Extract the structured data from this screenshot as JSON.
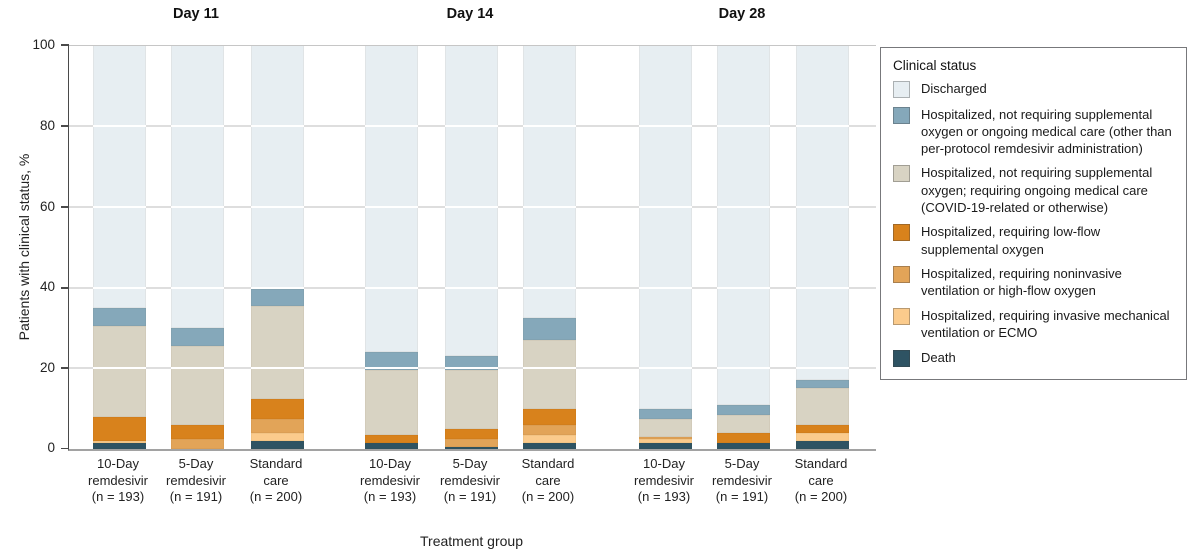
{
  "day_labels": [
    "Day 11",
    "Day 14",
    "Day 28"
  ],
  "y_axis": {
    "title": "Patients with clinical status, %",
    "ticks": [
      100,
      80,
      60,
      40,
      20,
      0
    ]
  },
  "x_axis": {
    "title": "Treatment group",
    "bar_labels": [
      [
        "10-Day",
        "remdesivir",
        "(n = 193)"
      ],
      [
        "5-Day",
        "remdesivir",
        "(n = 191)"
      ],
      [
        "Standard",
        "care",
        "(n = 200)"
      ]
    ]
  },
  "legend": {
    "title": "Clinical status",
    "items": [
      {
        "label": "Discharged",
        "color": "#e7eef2"
      },
      {
        "label": "Hospitalized, not requiring supplemental oxygen or ongoing medical care (other than per-protocol remdesivir administration)",
        "color": "#85a8ba"
      },
      {
        "label": "Hospitalized, not requiring supplemental oxygen; requiring ongoing medical care (COVID-19-related or otherwise)",
        "color": "#d8d3c3"
      },
      {
        "label": "Hospitalized, requiring low-flow supplemental oxygen",
        "color": "#d8821c"
      },
      {
        "label": "Hospitalized, requiring noninvasive ventilation or high-flow oxygen",
        "color": "#e2a458"
      },
      {
        "label": "Hospitalized, requiring invasive mechanical ventilation or ECMO",
        "color": "#fbcb8c"
      },
      {
        "label": "Death",
        "color": "#2e5363"
      }
    ]
  },
  "chart_data": {
    "type": "bar",
    "stacked": true,
    "ylabel": "Patients with clinical status, %",
    "xlabel": "Treatment group",
    "ylim": [
      0,
      100
    ],
    "grid": true,
    "legend_position": "right",
    "groups": [
      "Day 11",
      "Day 14",
      "Day 28"
    ],
    "categories": [
      "Day 11 / 10-Day remdesivir (n = 193)",
      "Day 11 / 5-Day remdesivir (n = 191)",
      "Day 11 / Standard care (n = 200)",
      "Day 14 / 10-Day remdesivir (n = 193)",
      "Day 14 / 5-Day remdesivir (n = 191)",
      "Day 14 / Standard care (n = 200)",
      "Day 28 / 10-Day remdesivir (n = 193)",
      "Day 28 / 5-Day remdesivir (n = 191)",
      "Day 28 / Standard care (n = 200)"
    ],
    "series_bottom_to_top": [
      {
        "name": "Death",
        "color": "#2e5363",
        "values": [
          1.5,
          0,
          2,
          1.5,
          0.5,
          1.5,
          1.5,
          1.5,
          2
        ]
      },
      {
        "name": "Hospitalized, requiring invasive mechanical ventilation or ECMO",
        "color": "#fbcb8c",
        "values": [
          0.5,
          0,
          2,
          0,
          0,
          2,
          1,
          0,
          2
        ]
      },
      {
        "name": "Hospitalized, requiring noninvasive ventilation or high-flow oxygen",
        "color": "#e2a458",
        "values": [
          0,
          2.5,
          3.5,
          0,
          2,
          2.5,
          0.5,
          0,
          0
        ]
      },
      {
        "name": "Hospitalized, requiring low-flow supplemental oxygen",
        "color": "#d8821c",
        "values": [
          6,
          3.5,
          5,
          2,
          2.5,
          4,
          0,
          2.5,
          2
        ]
      },
      {
        "name": "Hospitalized, not requiring supplemental oxygen; requiring ongoing medical care (COVID-19-related or otherwise)",
        "color": "#d8d3c3",
        "values": [
          22.5,
          19.5,
          23,
          16,
          14.5,
          17,
          4.5,
          4.5,
          9
        ]
      },
      {
        "name": "Hospitalized, not requiring supplemental oxygen or ongoing medical care (other than per-protocol remdesivir administration)",
        "color": "#85a8ba",
        "values": [
          4.5,
          4.5,
          4,
          4.5,
          3.5,
          5.5,
          2.5,
          2.5,
          2
        ]
      },
      {
        "name": "Discharged",
        "color": "#e7eef2",
        "values": [
          65,
          70,
          60.5,
          76,
          77,
          67.5,
          90,
          89,
          83
        ]
      }
    ]
  }
}
